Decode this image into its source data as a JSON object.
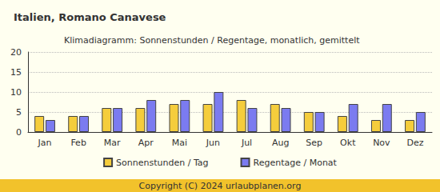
{
  "chart_data": {
    "type": "bar",
    "title": "Italien, Romano Canavese",
    "subtitle": "Klimadiagramm: Sonnenstunden / Regentage, monatlich, gemittelt",
    "annotations": [
      "Copyright (C) 2024 urlaubplanen.org"
    ],
    "categories": [
      "Jan",
      "Feb",
      "Mar",
      "Apr",
      "Mai",
      "Jun",
      "Jul",
      "Aug",
      "Sep",
      "Okt",
      "Nov",
      "Dez"
    ],
    "series": [
      {
        "name": "Sonnenstunden / Tag",
        "color": "#f5cd3c",
        "values": [
          4,
          4,
          6,
          6,
          7,
          7,
          8,
          7,
          5,
          4,
          3,
          3
        ]
      },
      {
        "name": "Regentage / Monat",
        "color": "#7b7bf0",
        "values": [
          3,
          4,
          6,
          8,
          8,
          10,
          6,
          6,
          5,
          7,
          7,
          5
        ]
      }
    ],
    "ylim": [
      0,
      20
    ],
    "yticks": [
      0,
      5,
      10,
      15,
      20
    ],
    "grid": true,
    "legend": "bottom"
  }
}
